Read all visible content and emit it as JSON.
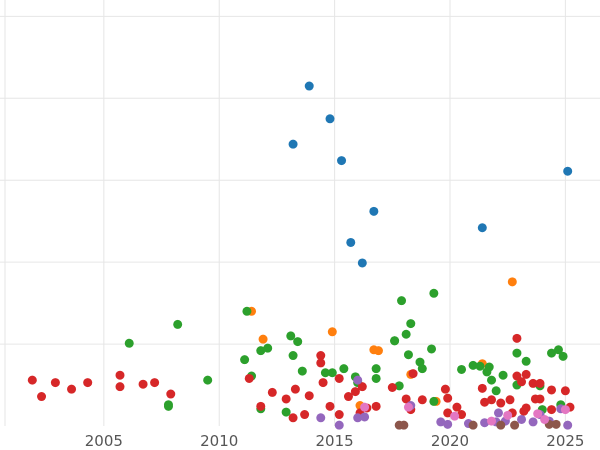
{
  "chart_data": {
    "type": "scatter",
    "title": "",
    "xlabel": "",
    "ylabel": "",
    "xlim": [
      2000.5,
      2026.5
    ],
    "ylim": [
      0,
      52
    ],
    "x_ticks": [
      2005,
      2010,
      2015,
      2020,
      2025
    ],
    "x_tick_labels": [
      "2005",
      "2010",
      "2015",
      "2020",
      "2025"
    ],
    "y_gridlines": [
      10,
      20,
      30,
      40,
      50
    ],
    "grid": true,
    "legend": "none",
    "series": [
      {
        "color": "#1f77b4",
        "points": [
          [
            2013.9,
            41.5
          ],
          [
            2014.8,
            37.5
          ],
          [
            2013.2,
            34.4
          ],
          [
            2015.3,
            32.4
          ],
          [
            2016.7,
            26.2
          ],
          [
            2015.7,
            22.4
          ],
          [
            2016.2,
            19.9
          ],
          [
            2021.4,
            24.2
          ],
          [
            2025.1,
            31.1
          ]
        ]
      },
      {
        "color": "#ff7f0e",
        "points": [
          [
            2011.4,
            14.0
          ],
          [
            2011.9,
            10.6
          ],
          [
            2014.9,
            11.5
          ],
          [
            2016.7,
            9.3
          ],
          [
            2016.9,
            9.2
          ],
          [
            2022.7,
            17.6
          ],
          [
            2021.4,
            7.6
          ],
          [
            2018.3,
            6.3
          ],
          [
            2016.1,
            2.5
          ],
          [
            2019.4,
            3.0
          ]
        ]
      },
      {
        "color": "#2ca02c",
        "points": [
          [
            2006.1,
            10.1
          ],
          [
            2008.2,
            12.4
          ],
          [
            2007.8,
            2.6
          ],
          [
            2007.8,
            2.4
          ],
          [
            2009.5,
            5.6
          ],
          [
            2011.2,
            14.0
          ],
          [
            2011.1,
            8.1
          ],
          [
            2011.4,
            6.1
          ],
          [
            2011.8,
            9.2
          ],
          [
            2012.1,
            9.5
          ],
          [
            2011.8,
            2.1
          ],
          [
            2013.1,
            11.0
          ],
          [
            2013.4,
            10.3
          ],
          [
            2013.2,
            8.6
          ],
          [
            2013.6,
            6.7
          ],
          [
            2014.6,
            6.5
          ],
          [
            2014.9,
            6.5
          ],
          [
            2015.4,
            7.0
          ],
          [
            2015.9,
            6.0
          ],
          [
            2016.8,
            7.0
          ],
          [
            2016.8,
            5.8
          ],
          [
            2017.6,
            10.4
          ],
          [
            2017.9,
            15.3
          ],
          [
            2018.3,
            12.5
          ],
          [
            2018.1,
            11.2
          ],
          [
            2018.2,
            8.7
          ],
          [
            2019.3,
            16.2
          ],
          [
            2019.2,
            9.4
          ],
          [
            2018.7,
            7.8
          ],
          [
            2018.8,
            7.0
          ],
          [
            2017.8,
            4.9
          ],
          [
            2020.5,
            6.9
          ],
          [
            2021.0,
            7.4
          ],
          [
            2021.3,
            7.3
          ],
          [
            2021.7,
            7.2
          ],
          [
            2021.8,
            5.6
          ],
          [
            2021.6,
            6.6
          ],
          [
            2022.3,
            6.2
          ],
          [
            2022.0,
            4.3
          ],
          [
            2022.9,
            5.0
          ],
          [
            2022.9,
            8.9
          ],
          [
            2023.3,
            7.9
          ],
          [
            2023.9,
            4.9
          ],
          [
            2024.4,
            8.9
          ],
          [
            2024.7,
            9.3
          ],
          [
            2024.9,
            8.5
          ],
          [
            2024.0,
            2.0
          ],
          [
            2024.8,
            2.6
          ],
          [
            2012.9,
            1.7
          ],
          [
            2016.0,
            5.3
          ],
          [
            2017.6,
            10.4
          ],
          [
            2019.3,
            3.0
          ]
        ]
      },
      {
        "color": "#d62728",
        "points": [
          [
            2001.9,
            5.6
          ],
          [
            2002.3,
            3.6
          ],
          [
            2002.9,
            5.3
          ],
          [
            2003.6,
            4.5
          ],
          [
            2004.3,
            5.3
          ],
          [
            2005.7,
            6.2
          ],
          [
            2005.7,
            4.8
          ],
          [
            2006.7,
            5.1
          ],
          [
            2007.2,
            5.3
          ],
          [
            2007.9,
            3.9
          ],
          [
            2011.3,
            5.8
          ],
          [
            2011.8,
            2.4
          ],
          [
            2012.3,
            4.1
          ],
          [
            2012.9,
            3.3
          ],
          [
            2013.3,
            4.5
          ],
          [
            2013.2,
            1.0
          ],
          [
            2013.7,
            1.4
          ],
          [
            2013.9,
            3.7
          ],
          [
            2014.4,
            8.6
          ],
          [
            2014.4,
            7.7
          ],
          [
            2014.5,
            5.3
          ],
          [
            2014.8,
            2.4
          ],
          [
            2015.2,
            5.8
          ],
          [
            2015.2,
            1.4
          ],
          [
            2015.6,
            3.6
          ],
          [
            2015.9,
            4.2
          ],
          [
            2016.2,
            4.8
          ],
          [
            2016.1,
            1.6
          ],
          [
            2016.4,
            2.2
          ],
          [
            2016.8,
            2.4
          ],
          [
            2017.5,
            4.7
          ],
          [
            2018.1,
            3.3
          ],
          [
            2018.3,
            2.0
          ],
          [
            2018.4,
            6.4
          ],
          [
            2018.8,
            3.2
          ],
          [
            2019.8,
            4.5
          ],
          [
            2019.9,
            3.4
          ],
          [
            2019.9,
            1.6
          ],
          [
            2020.3,
            2.3
          ],
          [
            2021.4,
            4.6
          ],
          [
            2021.5,
            2.9
          ],
          [
            2021.8,
            3.2
          ],
          [
            2022.2,
            2.8
          ],
          [
            2022.6,
            3.2
          ],
          [
            2022.7,
            1.6
          ],
          [
            2022.9,
            10.7
          ],
          [
            2022.9,
            6.1
          ],
          [
            2023.1,
            5.4
          ],
          [
            2023.3,
            6.3
          ],
          [
            2023.3,
            2.2
          ],
          [
            2023.6,
            5.2
          ],
          [
            2023.9,
            5.2
          ],
          [
            2023.7,
            3.3
          ],
          [
            2023.9,
            3.3
          ],
          [
            2024.4,
            4.4
          ],
          [
            2024.4,
            2.0
          ],
          [
            2025.0,
            4.3
          ],
          [
            2025.2,
            2.3
          ],
          [
            2020.5,
            1.4
          ],
          [
            2023.2,
            1.8
          ]
        ]
      },
      {
        "color": "#9467bd",
        "points": [
          [
            2014.4,
            1.0
          ],
          [
            2015.2,
            0.1
          ],
          [
            2016.0,
            1.0
          ],
          [
            2016.3,
            1.1
          ],
          [
            2016.0,
            5.6
          ],
          [
            2018.3,
            2.5
          ],
          [
            2019.6,
            0.5
          ],
          [
            2019.9,
            0.2
          ],
          [
            2020.8,
            0.3
          ],
          [
            2021.5,
            0.4
          ],
          [
            2022.0,
            0.5
          ],
          [
            2022.4,
            0.6
          ],
          [
            2023.1,
            0.8
          ],
          [
            2023.6,
            0.5
          ],
          [
            2023.9,
            1.4
          ],
          [
            2024.3,
            0.6
          ],
          [
            2024.8,
            2.1
          ],
          [
            2025.1,
            0.1
          ],
          [
            2022.1,
            1.6
          ]
        ]
      },
      {
        "color": "#8c564b",
        "points": [
          [
            2017.8,
            0.1
          ],
          [
            2018.0,
            0.1
          ],
          [
            2021.0,
            0.1
          ],
          [
            2022.2,
            0.1
          ],
          [
            2022.8,
            0.1
          ],
          [
            2024.3,
            0.2
          ],
          [
            2024.6,
            0.2
          ]
        ]
      },
      {
        "color": "#e377c2",
        "points": [
          [
            2016.3,
            2.3
          ],
          [
            2018.2,
            2.3
          ],
          [
            2020.2,
            1.2
          ],
          [
            2021.8,
            0.6
          ],
          [
            2022.5,
            1.3
          ],
          [
            2023.8,
            1.5
          ],
          [
            2024.1,
            0.8
          ],
          [
            2025.0,
            2.0
          ]
        ]
      }
    ]
  }
}
